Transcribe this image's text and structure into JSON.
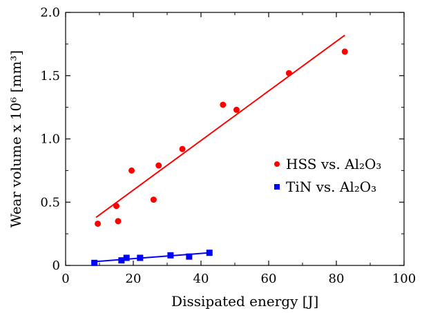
{
  "chart_data": {
    "type": "scatter",
    "xlabel": "Dissipated energy [J]",
    "ylabel": "Wear volume x 10⁶ [mm³]",
    "xlim": [
      0,
      100
    ],
    "ylim": [
      0,
      2.0
    ],
    "x_ticks": [
      0,
      20,
      40,
      60,
      80,
      100
    ],
    "y_ticks": [
      0,
      0.5,
      1.0,
      1.5,
      2.0
    ],
    "x_tick_labels": [
      "0",
      "20",
      "40",
      "60",
      "80",
      "100"
    ],
    "y_tick_labels": [
      "0",
      "0.5",
      "1.0",
      "1.5",
      "2.0"
    ],
    "grid": false,
    "legend_position": "center-right",
    "series": [
      {
        "name": "HSS vs. Al₂O₃",
        "marker": "circle",
        "color": "#ff0000",
        "points": [
          {
            "x": 9.5,
            "y": 0.33
          },
          {
            "x": 15.0,
            "y": 0.47
          },
          {
            "x": 15.5,
            "y": 0.35
          },
          {
            "x": 19.5,
            "y": 0.75
          },
          {
            "x": 26.0,
            "y": 0.52
          },
          {
            "x": 27.5,
            "y": 0.79
          },
          {
            "x": 34.5,
            "y": 0.92
          },
          {
            "x": 46.5,
            "y": 1.27
          },
          {
            "x": 50.5,
            "y": 1.23
          },
          {
            "x": 66.0,
            "y": 1.52
          },
          {
            "x": 82.5,
            "y": 1.69
          }
        ],
        "fit_line": [
          {
            "x": 9.0,
            "y": 0.38
          },
          {
            "x": 82.5,
            "y": 1.82
          }
        ]
      },
      {
        "name": "TiN vs. Al₂O₃",
        "marker": "square",
        "color": "#0000ff",
        "points": [
          {
            "x": 8.5,
            "y": 0.02
          },
          {
            "x": 16.5,
            "y": 0.04
          },
          {
            "x": 18.0,
            "y": 0.06
          },
          {
            "x": 22.0,
            "y": 0.06
          },
          {
            "x": 31.0,
            "y": 0.08
          },
          {
            "x": 36.5,
            "y": 0.07
          },
          {
            "x": 42.5,
            "y": 0.1
          }
        ],
        "fit_line": [
          {
            "x": 8.5,
            "y": 0.03
          },
          {
            "x": 42.5,
            "y": 0.1
          }
        ]
      }
    ]
  }
}
